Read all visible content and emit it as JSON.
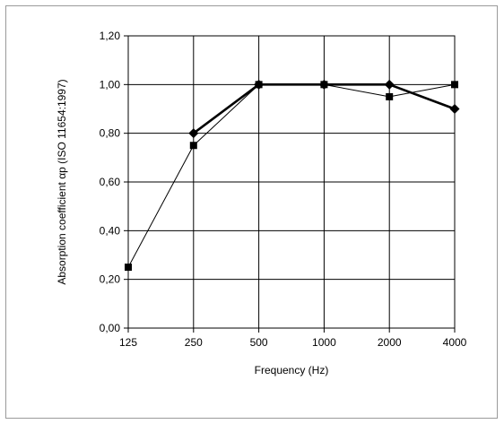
{
  "chart_data": {
    "type": "line",
    "xlabel": "Frequency (Hz)",
    "ylabel": "Absorption  coefficient  αp (ISO 11654:1997)",
    "categories": [
      "125",
      "250",
      "500",
      "1000",
      "2000",
      "4000"
    ],
    "y_ticks": [
      "0,00",
      "0,20",
      "0,40",
      "0,60",
      "0,80",
      "1,00",
      "1,20"
    ],
    "ylim": [
      0,
      1.2
    ],
    "grid": true,
    "series": [
      {
        "marker": "square",
        "line_weight": "thin",
        "color": "#000000",
        "values": [
          0.25,
          0.75,
          1.0,
          1.0,
          0.95,
          1.0
        ]
      },
      {
        "marker": "diamond",
        "line_weight": "thick",
        "color": "#000000",
        "values": [
          null,
          0.8,
          1.0,
          1.0,
          1.0,
          0.9
        ]
      }
    ]
  }
}
